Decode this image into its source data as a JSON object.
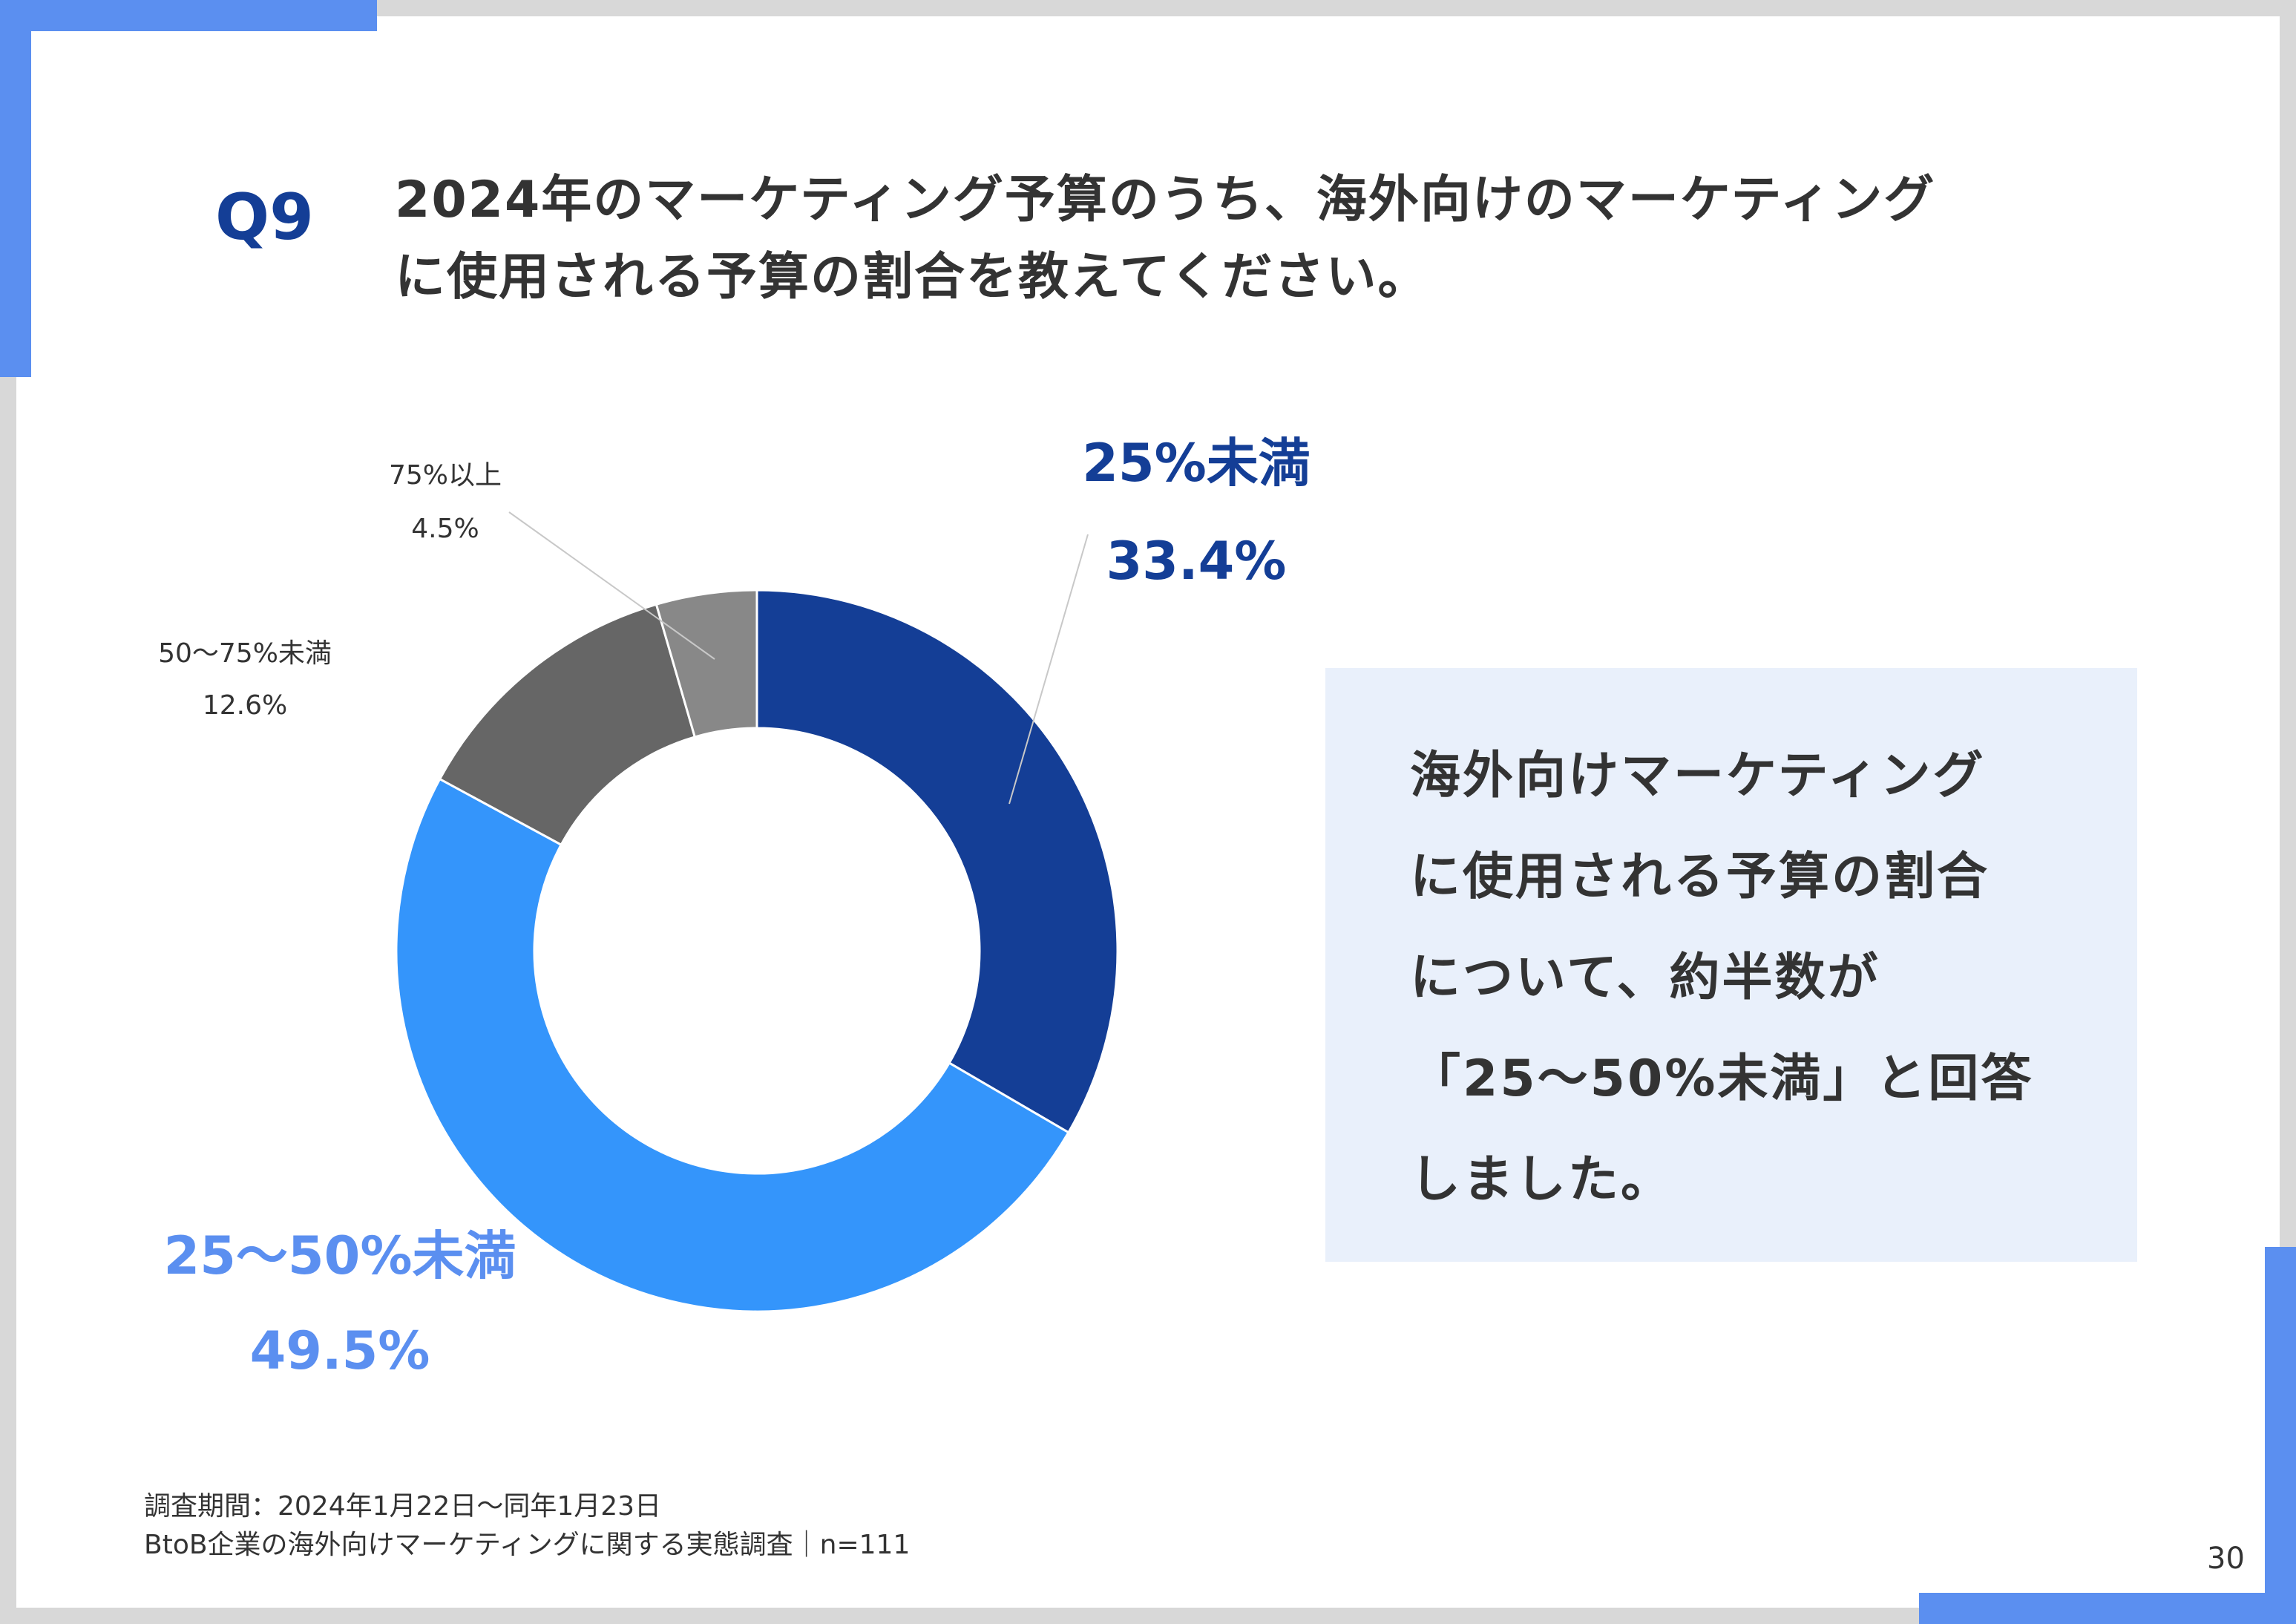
{
  "header": {
    "question_number": "Q9",
    "question_lines": [
      "2024年のマーケティング予算のうち、海外向けのマーケティング",
      "に使用される予算の割合を教えてください。"
    ]
  },
  "chart_data": {
    "type": "pie",
    "variant": "donut",
    "categories": [
      "25%未満",
      "25〜50%未満",
      "50〜75%未満",
      "75%以上"
    ],
    "values": [
      33.4,
      49.5,
      12.6,
      4.5
    ],
    "value_labels": [
      "33.4%",
      "49.5%",
      "12.6%",
      "4.5%"
    ],
    "colors": [
      "#143e96",
      "#3495fb",
      "#666666",
      "#888888"
    ],
    "label_colors": [
      "#143e96",
      "#5b8ff0",
      "#333333",
      "#333333"
    ]
  },
  "callout": {
    "lines": [
      "海外向けマーケティング",
      "に使用される予算の割合",
      "について、約半数が",
      "「25〜50%未満」と回答",
      "しました。"
    ]
  },
  "footer": {
    "survey_period": "調査期間：2024年1月22日〜同年1月23日",
    "survey_title": "BtoB企業の海外向けマーケティングに関する実態調査｜n=111",
    "page_number": "30"
  }
}
